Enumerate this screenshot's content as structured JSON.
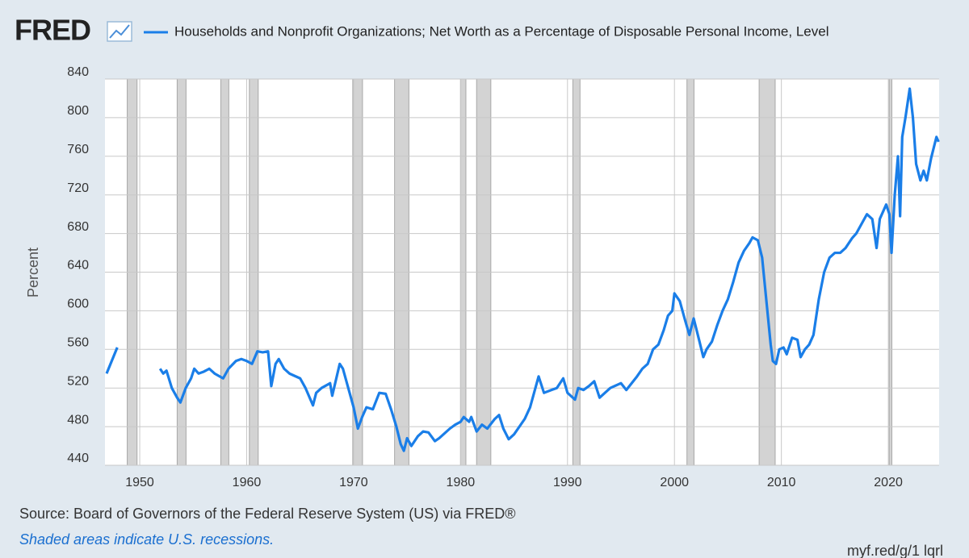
{
  "chart_data": {
    "type": "line",
    "logo": "FRED",
    "source": "Source: Board of Governors of the Federal Reserve System (US) via FRED®",
    "note": "Shaded areas indicate U.S. recessions.",
    "url": "myf.red/g/1 lqrl",
    "ylabel": "Percent",
    "xlim": [
      1946.75,
      2024.75
    ],
    "ylim": [
      440,
      840
    ],
    "xticks": [
      1950,
      1960,
      1970,
      1980,
      1990,
      2000,
      2010,
      2020
    ],
    "yticks": [
      440,
      480,
      520,
      560,
      600,
      640,
      680,
      720,
      760,
      800,
      840
    ],
    "grid": true,
    "recession_color": "#d3d3d3",
    "recessions": [
      [
        1948.83,
        1949.75
      ],
      [
        1953.5,
        1954.33
      ],
      [
        1957.58,
        1958.33
      ],
      [
        1960.25,
        1961.08
      ],
      [
        1969.92,
        1970.83
      ],
      [
        1973.83,
        1975.17
      ],
      [
        1980.0,
        1980.5
      ],
      [
        1981.5,
        1982.83
      ],
      [
        1990.5,
        1991.17
      ],
      [
        2001.17,
        2001.83
      ],
      [
        2007.92,
        2009.42
      ],
      [
        2020.08,
        2020.33
      ]
    ],
    "x": [
      1946.9,
      1947.9,
      1950.0,
      1951.9,
      1952.2,
      1952.5,
      1953.0,
      1953.5,
      1953.8,
      1954.3,
      1954.8,
      1955.1,
      1955.5,
      1956.0,
      1956.5,
      1957.0,
      1957.8,
      1958.3,
      1959.0,
      1959.5,
      1960.0,
      1960.5,
      1961.0,
      1961.5,
      1962.0,
      1962.3,
      1962.7,
      1963.0,
      1963.5,
      1964.0,
      1965.0,
      1965.5,
      1966.2,
      1966.5,
      1967.0,
      1967.8,
      1968.0,
      1968.7,
      1969.0,
      1969.5,
      1970.0,
      1970.4,
      1970.8,
      1971.2,
      1971.8,
      1972.4,
      1973.0,
      1973.5,
      1974.0,
      1974.4,
      1974.7,
      1975.0,
      1975.4,
      1976.0,
      1976.5,
      1977.0,
      1977.6,
      1978.0,
      1979.0,
      1979.5,
      1980.0,
      1980.3,
      1980.8,
      1981.0,
      1981.5,
      1982.0,
      1982.5,
      1983.2,
      1983.6,
      1984.0,
      1984.5,
      1985.0,
      1985.5,
      1986.0,
      1986.5,
      1987.0,
      1987.3,
      1987.8,
      1988.5,
      1989.0,
      1989.6,
      1990.0,
      1990.7,
      1991.0,
      1991.5,
      1992.0,
      1992.5,
      1993.0,
      1993.5,
      1994.0,
      1995.0,
      1995.5,
      1996.0,
      1996.5,
      1997.0,
      1997.5,
      1998.0,
      1998.5,
      1999.0,
      1999.4,
      1999.8,
      2000.0,
      2000.5,
      2001.0,
      2001.4,
      2001.8,
      2002.3,
      2002.7,
      2003.0,
      2003.5,
      2004.0,
      2004.5,
      2005.0,
      2005.5,
      2006.0,
      2006.5,
      2007.0,
      2007.3,
      2007.8,
      2008.2,
      2008.6,
      2009.0,
      2009.2,
      2009.5,
      2009.8,
      2010.2,
      2010.5,
      2011.0,
      2011.5,
      2011.8,
      2012.2,
      2012.6,
      2013.0,
      2013.5,
      2014.0,
      2014.5,
      2015.0,
      2015.5,
      2016.0,
      2016.6,
      2017.0,
      2017.5,
      2018.0,
      2018.5,
      2018.9,
      2019.2,
      2019.8,
      2020.1,
      2020.3,
      2020.6,
      2020.9,
      2021.1,
      2021.3,
      2021.6,
      2022.0,
      2022.3,
      2022.6,
      2023.0,
      2023.3,
      2023.6,
      2024.0,
      2024.5,
      2024.7
    ],
    "series": [
      {
        "name": "Households and Nonprofit Organizations; Net Worth as a Percentage of Disposable Personal Income, Level",
        "color": "#1a7ee8",
        "values": [
          535,
          562,
          null,
          540,
          535,
          538,
          520,
          510,
          505,
          520,
          530,
          540,
          535,
          537,
          540,
          535,
          530,
          540,
          548,
          550,
          548,
          545,
          558,
          557,
          558,
          522,
          545,
          550,
          540,
          535,
          530,
          520,
          502,
          515,
          520,
          525,
          512,
          545,
          540,
          520,
          500,
          478,
          490,
          500,
          498,
          515,
          514,
          498,
          480,
          462,
          455,
          468,
          460,
          470,
          475,
          474,
          465,
          468,
          478,
          482,
          485,
          490,
          485,
          490,
          475,
          482,
          478,
          488,
          492,
          478,
          467,
          472,
          480,
          488,
          500,
          520,
          532,
          515,
          518,
          520,
          530,
          515,
          508,
          520,
          518,
          522,
          527,
          510,
          515,
          520,
          525,
          518,
          525,
          532,
          540,
          545,
          560,
          565,
          580,
          595,
          600,
          618,
          610,
          590,
          575,
          592,
          570,
          552,
          560,
          568,
          585,
          600,
          612,
          630,
          650,
          662,
          670,
          676,
          673,
          655,
          610,
          565,
          548,
          545,
          560,
          562,
          555,
          572,
          570,
          552,
          560,
          565,
          575,
          612,
          640,
          655,
          660,
          660,
          665,
          675,
          680,
          690,
          700,
          695,
          665,
          695,
          710,
          700,
          660,
          720,
          760,
          698,
          780,
          800,
          830,
          800,
          752,
          735,
          745,
          735,
          758,
          780,
          775
        ]
      }
    ]
  }
}
